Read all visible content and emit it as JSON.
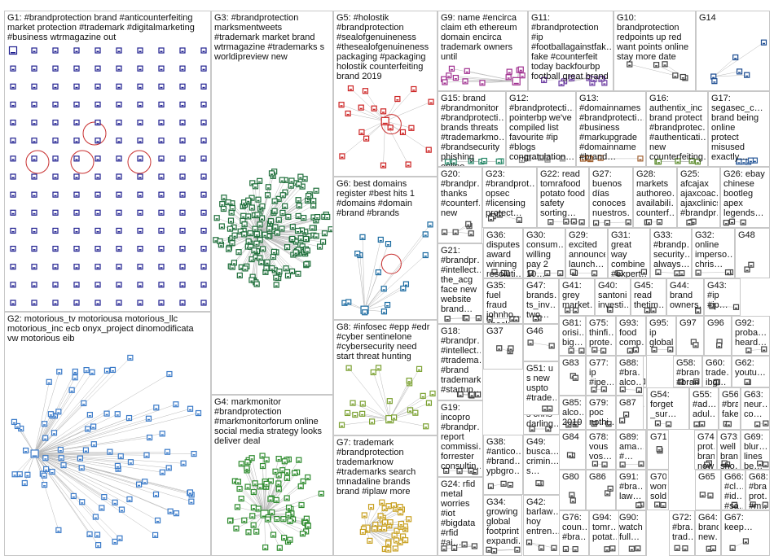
{
  "title": "",
  "groups": [
    {
      "id": "G1",
      "label": "G1: #brandprotection brand #anticounterfeiting\nmarket protection #trademark #digitalmarketing\n#business wtrmagazine out",
      "accent": "#1f1f8f"
    },
    {
      "id": "G2",
      "label": "G2: motorious_tv motoriousa motorious_llc\nmotorious_inc ecb onyx_project dinomodificata\nvw motorious eib",
      "accent": "#3a7ac8"
    },
    {
      "id": "G3",
      "label": "G3: #brandprotection\nmarksmentweets\n#trademark market brand\nwtrmagazine #trademarks s\nworldipreview new",
      "accent": "#1e6e3a"
    },
    {
      "id": "G4",
      "label": "G4: markmonitor\n#brandprotection\n#markmonitorforum online\nsocial media strategy looks\ndeliver deal",
      "accent": "#2e8b2e"
    },
    {
      "id": "G5",
      "label": "G5: #holostik\n#brandprotection\n#sealofgenuineness\n#thesealofgenuineness\npackaging #packaging\nholostik counterfeiting\nbrand 2019",
      "accent": "#cc2222"
    },
    {
      "id": "G6",
      "label": "G6: best domains\nregister #best hits 1\n#domains #domain\n#brand #brands",
      "accent": "#1a6aa0"
    },
    {
      "id": "G7",
      "label": "G7: trademark\n#brandprotection\ntrademarknow\n#trademarks search\ntmnadaline brands\nbrand #iplaw more",
      "accent": "#c8a020"
    },
    {
      "id": "G8",
      "label": "G8: #infosec #epp #edr\n#cyber sentinelone\n#cybersecurity need\nstart threat hunting",
      "accent": "#7aa030"
    },
    {
      "id": "G9",
      "label": "G9: name #encirca\nclaim eth ethereum\ndomain encirca\ntrademark owners\nuntil",
      "accent": "#a03090"
    },
    {
      "id": "G10",
      "label": "G10: brandprotection\nredpoints up red\nwant points online\nstay more date",
      "accent": "#444"
    },
    {
      "id": "G11",
      "label": "G11: #brandprotection\n#ip\n#footballagainstfak…\nfake #counterfeit\ntoday backfourbp\nfootball great brand",
      "accent": "#6a3aa0"
    },
    {
      "id": "G12",
      "label": "G12: #brandprotecti…\npointerbp we've\ncompiled list\nfavourite #ip\n#blogs\ncongratulation…",
      "accent": "#888"
    },
    {
      "id": "G13",
      "label": "G13: #domainnames\n#brandprotecti…\n#business\n#markupgrade\n#domainname\n#brand…",
      "accent": "#a06030"
    },
    {
      "id": "G14",
      "label": "G14",
      "accent": "#1a4a90"
    },
    {
      "id": "G15",
      "label": "G15: brand\n#brandmonitor\n#brandprotecti…\nbrands threats\n#trademarkmo…\n#brandsecurity\nphishing online…",
      "accent": "#2a8a6a"
    },
    {
      "id": "G16",
      "label": "G16:\nauthentix_inc\nbrand protect\n#brandprotec…\n#authenticati…\nnew\ncounterfeiting…",
      "accent": "#5a8a2a"
    },
    {
      "id": "G17",
      "label": "G17:\nsegasec_c…\nbrand being\nonline\nprotect\nmisused\nexactly…",
      "accent": "#2a5a9a"
    },
    {
      "id": "G18",
      "label": "G18:\n#brandpr…\n#intellect…\n#tradema…\n#brand\ntrademark\n#startup…",
      "accent": "#444"
    },
    {
      "id": "G19",
      "label": "G19:\nincopro\n#brandpr…\nreport\ncommissi…\nforrester\nconsultin…",
      "accent": "#444"
    },
    {
      "id": "G20",
      "label": "G20:\n#brandpr…\nthanks\n#counterf…\nnew",
      "accent": "#444"
    },
    {
      "id": "G21",
      "label": "G21:\n#brandpr…\n#intellect…\nthe_acg\nface new\nwebsite\nbrand…",
      "accent": "#444"
    },
    {
      "id": "G22",
      "label": "G22: read\ntomrafood\npotato food\nsafety\nsorting…",
      "accent": "#444"
    },
    {
      "id": "G23",
      "label": "G23: #brandprot…\nopsec\n#licensing\nprotect…",
      "accent": "#444"
    },
    {
      "id": "G24",
      "label": "G24: rfid\nmetal\nworries\n#iot\n#bigdata\n#rfid #ai…",
      "accent": "#444"
    },
    {
      "id": "G25",
      "label": "G25:\nafcajax\najaxcoac…\najaxclinics\n#brandpr…",
      "accent": "#444"
    },
    {
      "id": "G26",
      "label": "G26: ebay\nchinese\nbootleg\napex\nlegends…",
      "accent": "#444"
    },
    {
      "id": "G27",
      "label": "G27:\nbuenos\ndías\nconoces\nnuestros…",
      "accent": "#444"
    },
    {
      "id": "G28",
      "label": "G28:\nmarkets\nauthoreo…\navailabili…\ncounterf…",
      "accent": "#444"
    },
    {
      "id": "G29",
      "label": "G29:\nexcited\nannounce\nlaunch…",
      "accent": "#444"
    },
    {
      "id": "G30",
      "label": "G30:\nconsum…\nwilling\npay 2 10…",
      "accent": "#444"
    },
    {
      "id": "G31",
      "label": "G31:\ngreat way\ncombine\n#expert…",
      "accent": "#444"
    },
    {
      "id": "G32",
      "label": "G32:\nonline\nimperso…\nchris…",
      "accent": "#444"
    },
    {
      "id": "G33",
      "label": "G33:\n#brandp…\nsecurity…\nalways…",
      "accent": "#444"
    },
    {
      "id": "G34",
      "label": "G34:\ngrowing\nglobal\nfootprint\nexpandi…",
      "accent": "#444"
    },
    {
      "id": "G35",
      "label": "G35: fuel\nfraud\njohnho…\ncheck…",
      "accent": "#444"
    },
    {
      "id": "G36",
      "label": "G36:\ndisputes\naward\nwinning\nresoluti…",
      "accent": "#444"
    },
    {
      "id": "G37",
      "label": "G37",
      "accent": "#444"
    },
    {
      "id": "G38",
      "label": "G38:\n#antico…\n#brand…\nypbgro…",
      "accent": "#444"
    },
    {
      "id": "G39",
      "label": "G39:\nmovilitas\nconnect\nwipotec…",
      "accent": "#444"
    },
    {
      "id": "G40",
      "label": "G40:\nsantoni\ninvesti…",
      "accent": "#444"
    },
    {
      "id": "G41",
      "label": "G41:\ngrey\nmarket…",
      "accent": "#444"
    },
    {
      "id": "G42",
      "label": "G42:\nbarlaw…\nhoy\nentren…",
      "accent": "#444"
    },
    {
      "id": "G43",
      "label": "G43: #ip\n#ip…",
      "accent": "#444"
    },
    {
      "id": "G44",
      "label": "G44:\nbrand\nowners…",
      "accent": "#444"
    },
    {
      "id": "G45",
      "label": "G45:\nread\nthetim…",
      "accent": "#444"
    },
    {
      "id": "G46",
      "label": "G46",
      "accent": "#444"
    },
    {
      "id": "G47",
      "label": "G47:\nbrands…\nts_inv…\ntwo…",
      "accent": "#444"
    },
    {
      "id": "G48",
      "label": "G48",
      "accent": "#444"
    },
    {
      "id": "G49",
      "label": "G49:\nbusca…\ncrimin…\ns…",
      "accent": "#444"
    },
    {
      "id": "G50",
      "label": "G50:\nnanote…\ns chris\ndarling…",
      "accent": "#444"
    },
    {
      "id": "G51",
      "label": "G51: u\ns new\nuspto\n#trade…",
      "accent": "#444"
    },
    {
      "id": "G52",
      "label": "G52:\n#bra…\n#pp…",
      "accent": "#444"
    },
    {
      "id": "G53",
      "label": "G53:\ninsp…\n#bra…",
      "accent": "#444"
    },
    {
      "id": "G54",
      "label": "G54:\nforget\n_sur…",
      "accent": "#444"
    },
    {
      "id": "G55",
      "label": "G55:\n#ad…\nadul…",
      "accent": "#444"
    },
    {
      "id": "G56",
      "label": "G56:\n#bra…\nfake…",
      "accent": "#444"
    },
    {
      "id": "G57",
      "label": "G57:\nceo\nuzi…",
      "accent": "#444"
    },
    {
      "id": "G58",
      "label": "G58:\n#brand\n#bran…",
      "accent": "#444"
    },
    {
      "id": "G59",
      "label": "G59:\n2019\nphar…",
      "accent": "#444"
    },
    {
      "id": "G60",
      "label": "G60:\ntrade…\nibg…",
      "accent": "#444"
    },
    {
      "id": "G61",
      "label": "G61:\ninco…\ns…",
      "accent": "#444"
    },
    {
      "id": "G62",
      "label": "G62:\nyoutu…",
      "accent": "#444"
    },
    {
      "id": "G63",
      "label": "G63:\nneur…\nco…",
      "accent": "#444"
    },
    {
      "id": "G64",
      "label": "G64:\nbrand\nnew…",
      "accent": "#444"
    },
    {
      "id": "G65",
      "label": "G65",
      "accent": "#444"
    },
    {
      "id": "G66",
      "label": "G66:\n#cl…\n#id…\n#sa…",
      "accent": "#444"
    },
    {
      "id": "G67",
      "label": "G67:\nkeep…",
      "accent": "#444"
    },
    {
      "id": "G68",
      "label": "G68:\n#bra…\nprot…\n#m…",
      "accent": "#444"
    },
    {
      "id": "G69",
      "label": "G69:\nblur…\nlines\nbe…",
      "accent": "#444"
    },
    {
      "id": "G70",
      "label": "G70:\nwom…\nsold…",
      "accent": "#444"
    },
    {
      "id": "G71",
      "label": "G71",
      "accent": "#444"
    },
    {
      "id": "G72",
      "label": "G72:\n#bra…\ntrad…",
      "accent": "#444"
    },
    {
      "id": "G73",
      "label": "G73:\nwell\nbrandplay\nsho…",
      "accent": "#444"
    },
    {
      "id": "G74",
      "label": "G74:\nprot…\nbrand\nnow…",
      "accent": "#444"
    },
    {
      "id": "G75",
      "label": "G75:\nthinfi…\nprote…",
      "accent": "#444"
    },
    {
      "id": "G76",
      "label": "G76:\ncoun…\n#bra…",
      "accent": "#444"
    },
    {
      "id": "G77",
      "label": "G77:\nip\n#ipe…",
      "accent": "#444"
    },
    {
      "id": "G78",
      "label": "G78:\nvous\nvos…",
      "accent": "#444"
    },
    {
      "id": "G79",
      "label": "G79:\npoc\nnothi…",
      "accent": "#444"
    },
    {
      "id": "G80",
      "label": "G80",
      "accent": "#444"
    },
    {
      "id": "G81",
      "label": "G81:\norisi…\nbig…",
      "accent": "#444"
    },
    {
      "id": "G82",
      "label": "G82:\n#bra…\n#co…",
      "accent": "#444"
    },
    {
      "id": "G83",
      "label": "G83",
      "accent": "#444"
    },
    {
      "id": "G84",
      "label": "G84",
      "accent": "#444"
    },
    {
      "id": "G85",
      "label": "G85:\nalco…\n2019…",
      "accent": "#444"
    },
    {
      "id": "G86",
      "label": "G86",
      "accent": "#444"
    },
    {
      "id": "G87",
      "label": "G87",
      "accent": "#444"
    },
    {
      "id": "G88",
      "label": "G88:\n#bra…\nalco…",
      "accent": "#444"
    },
    {
      "id": "G89",
      "label": "G89:\nama…\n#…",
      "accent": "#444"
    },
    {
      "id": "G90",
      "label": "G90:\nwatch\nfull…",
      "accent": "#444"
    },
    {
      "id": "G91",
      "label": "G91:\n#bra…\nlaw…",
      "accent": "#444"
    },
    {
      "id": "G92",
      "label": "G92:\nproba…\nheard…",
      "accent": "#444"
    },
    {
      "id": "G93",
      "label": "G93:\nfood\ncomp…",
      "accent": "#444"
    },
    {
      "id": "G94",
      "label": "G94:\ntomr…\npotat…",
      "accent": "#444"
    },
    {
      "id": "G95",
      "label": "G95:\nip\nglobal…",
      "accent": "#444"
    },
    {
      "id": "G96",
      "label": "G96",
      "accent": "#444"
    },
    {
      "id": "G97",
      "label": "G97",
      "accent": "#444"
    }
  ]
}
